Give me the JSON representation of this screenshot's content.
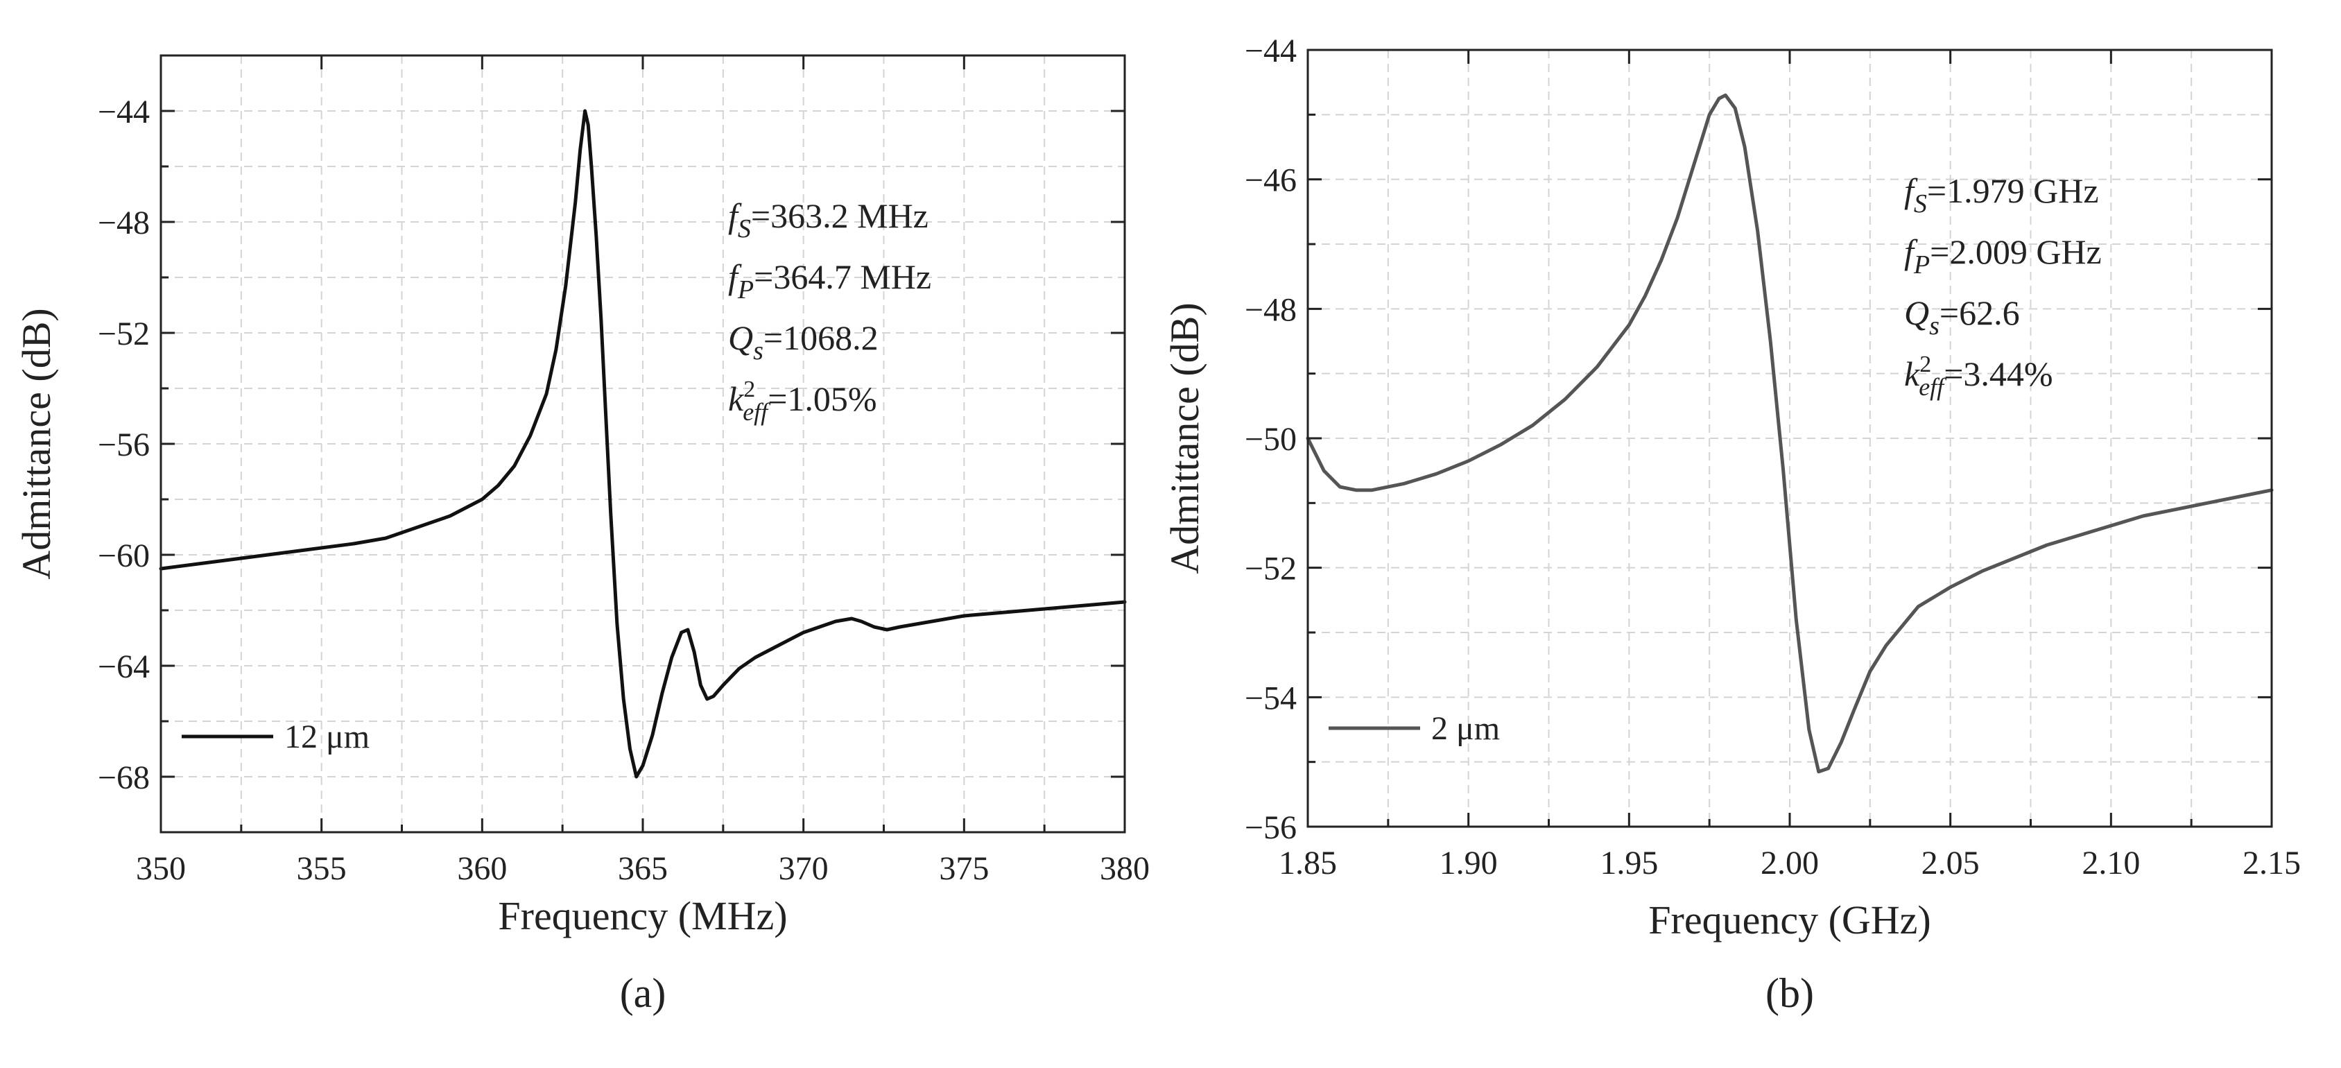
{
  "chart_data": [
    {
      "type": "line",
      "panel_label": "(a)",
      "xlabel": "Frequency (MHz)",
      "ylabel": "Admittance (dB)",
      "xlim": [
        350,
        380
      ],
      "ylim": [
        -70,
        -42
      ],
      "xticks": [
        350,
        355,
        360,
        365,
        370,
        375,
        380
      ],
      "yticks": [
        -68,
        -64,
        -60,
        -56,
        -52,
        -48,
        -44
      ],
      "tick_labels_x": [
        "350",
        "355",
        "360",
        "365",
        "370",
        "375",
        "380"
      ],
      "tick_labels_y": [
        "−68",
        "−64",
        "−60",
        "−56",
        "−52",
        "−48",
        "−44"
      ],
      "grid": true,
      "legend_position": "bottom-left",
      "annotation_position": "top-right",
      "color": "#111111",
      "series": [
        {
          "name": "12 μm",
          "x": [
            350,
            352,
            354,
            356,
            357,
            358,
            359,
            360,
            360.5,
            361,
            361.5,
            362,
            362.3,
            362.6,
            362.9,
            363.05,
            363.2,
            363.3,
            363.4,
            363.55,
            363.7,
            363.85,
            364,
            364.2,
            364.4,
            364.6,
            364.8,
            365,
            365.3,
            365.6,
            365.9,
            366.2,
            366.4,
            366.6,
            366.8,
            367,
            367.2,
            367.5,
            368,
            368.5,
            369,
            370,
            371,
            371.5,
            371.8,
            372.2,
            372.6,
            373,
            374,
            375,
            376,
            377,
            378,
            379,
            380
          ],
          "y": [
            -60.5,
            -60.2,
            -59.9,
            -59.6,
            -59.4,
            -59.0,
            -58.6,
            -58.0,
            -57.5,
            -56.8,
            -55.7,
            -54.2,
            -52.6,
            -50.3,
            -47.3,
            -45.4,
            -44.0,
            -44.5,
            -46.0,
            -48.5,
            -51.5,
            -55.0,
            -58.5,
            -62.5,
            -65.2,
            -67.0,
            -68.0,
            -67.6,
            -66.5,
            -65.0,
            -63.7,
            -62.8,
            -62.7,
            -63.5,
            -64.7,
            -65.2,
            -65.1,
            -64.7,
            -64.1,
            -63.7,
            -63.4,
            -62.8,
            -62.4,
            -62.3,
            -62.4,
            -62.6,
            -62.7,
            -62.6,
            -62.4,
            -62.2,
            -62.1,
            -62.0,
            -61.9,
            -61.8,
            -61.7
          ]
        }
      ],
      "annotations": [
        {
          "sym": "f",
          "sub": "S",
          "sup": "",
          "val": "=363.2 MHz"
        },
        {
          "sym": "f",
          "sub": "P",
          "sup": "",
          "val": "=364.7 MHz"
        },
        {
          "sym": "Q",
          "sub": "s",
          "sup": "",
          "val": "=1068.2"
        },
        {
          "sym": "k",
          "sub": "eff",
          "sup": "2",
          "val": "=1.05%"
        }
      ]
    },
    {
      "type": "line",
      "panel_label": "(b)",
      "xlabel": "Frequency (GHz)",
      "ylabel": "Admittance (dB)",
      "xlim": [
        1.85,
        2.15
      ],
      "ylim": [
        -56,
        -44
      ],
      "xticks": [
        1.85,
        1.9,
        1.95,
        2.0,
        2.05,
        2.1,
        2.15
      ],
      "yticks": [
        -56,
        -54,
        -52,
        -50,
        -48,
        -46,
        -44
      ],
      "tick_labels_x": [
        "1.85",
        "1.90",
        "1.95",
        "2.00",
        "2.05",
        "2.10",
        "2.15"
      ],
      "tick_labels_y": [
        "−56",
        "−54",
        "−52",
        "−50",
        "−48",
        "−46",
        "−44"
      ],
      "grid": true,
      "legend_position": "bottom-left",
      "annotation_position": "top-right",
      "color": "#555555",
      "series": [
        {
          "name": "2 μm",
          "x": [
            1.85,
            1.855,
            1.86,
            1.865,
            1.87,
            1.88,
            1.89,
            1.9,
            1.91,
            1.92,
            1.93,
            1.94,
            1.95,
            1.955,
            1.96,
            1.965,
            1.97,
            1.975,
            1.978,
            1.98,
            1.983,
            1.986,
            1.99,
            1.994,
            1.998,
            2.002,
            2.006,
            2.009,
            2.012,
            2.016,
            2.02,
            2.025,
            2.03,
            2.04,
            2.05,
            2.06,
            2.07,
            2.08,
            2.09,
            2.1,
            2.11,
            2.12,
            2.13,
            2.14,
            2.15
          ],
          "y": [
            -50.0,
            -50.5,
            -50.75,
            -50.8,
            -50.8,
            -50.7,
            -50.55,
            -50.35,
            -50.1,
            -49.8,
            -49.4,
            -48.9,
            -48.25,
            -47.8,
            -47.25,
            -46.6,
            -45.8,
            -45.0,
            -44.75,
            -44.7,
            -44.9,
            -45.5,
            -46.8,
            -48.5,
            -50.5,
            -52.8,
            -54.5,
            -55.15,
            -55.1,
            -54.7,
            -54.2,
            -53.6,
            -53.2,
            -52.6,
            -52.3,
            -52.05,
            -51.85,
            -51.65,
            -51.5,
            -51.35,
            -51.2,
            -51.1,
            -51.0,
            -50.9,
            -50.8
          ]
        }
      ],
      "annotations": [
        {
          "sym": "f",
          "sub": "S",
          "sup": "",
          "val": "=1.979 GHz"
        },
        {
          "sym": "f",
          "sub": "P",
          "sup": "",
          "val": "=2.009 GHz"
        },
        {
          "sym": "Q",
          "sub": "s",
          "sup": "",
          "val": "=62.6"
        },
        {
          "sym": "k",
          "sub": "eff",
          "sup": "2",
          "val": "=3.44%"
        }
      ]
    }
  ]
}
